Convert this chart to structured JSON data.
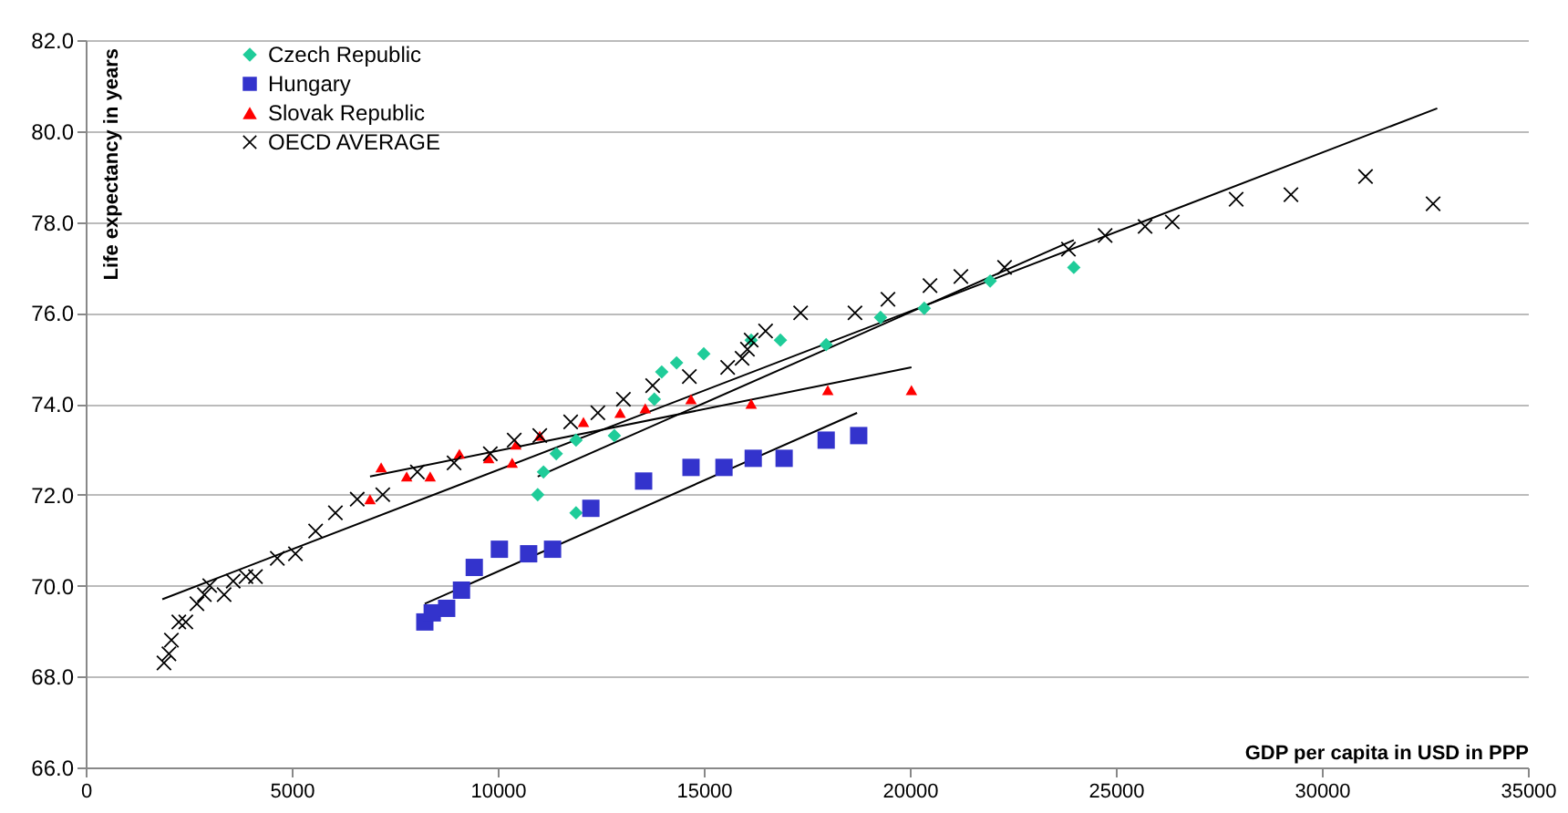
{
  "chart_data": {
    "type": "scatter",
    "xlabel": "GDP per capita in USD in PPP",
    "ylabel": "Life expectancy in years",
    "xlim": [
      0,
      35000
    ],
    "xticks": [
      0,
      5000,
      10000,
      15000,
      20000,
      25000,
      30000,
      35000
    ],
    "ylim": [
      66,
      82
    ],
    "yticks": [
      {
        "value": 66,
        "label": "66.0"
      },
      {
        "value": 68,
        "label": "68.0"
      },
      {
        "value": 70,
        "label": "70.0"
      },
      {
        "value": 72,
        "label": "72.0"
      },
      {
        "value": 74,
        "label": "74.0"
      },
      {
        "value": 76,
        "label": "76.0"
      },
      {
        "value": 78,
        "label": "78.0"
      },
      {
        "value": 80,
        "label": "80.0"
      },
      {
        "value": 82,
        "label": "82.0"
      }
    ],
    "grid": "y",
    "legend": "top left",
    "series": [
      {
        "name": "Czech Republic",
        "marker": "diamond",
        "color": "#1fcc99",
        "x": [
          10970,
          11110,
          11420,
          11900,
          11900,
          12830,
          13800,
          13980,
          14340,
          15000,
          16150,
          16860,
          17970,
          19290,
          20350,
          21950,
          23980
        ],
        "values": [
          72.0,
          72.5,
          72.9,
          73.2,
          71.6,
          73.3,
          74.1,
          74.7,
          74.9,
          75.1,
          75.4,
          75.4,
          75.3,
          75.9,
          76.1,
          76.7,
          77.0
        ]
      },
      {
        "name": "Hungary",
        "marker": "square",
        "color": "#3333cc",
        "x": [
          8230,
          8410,
          8760,
          9120,
          9430,
          10040,
          10750,
          11330,
          12260,
          13540,
          14690,
          15490,
          16200,
          16950,
          17970,
          18760
        ],
        "values": [
          69.2,
          69.4,
          69.5,
          69.9,
          70.4,
          70.8,
          70.7,
          70.8,
          71.7,
          72.3,
          72.6,
          72.6,
          72.8,
          72.8,
          73.2,
          73.3
        ]
      },
      {
        "name": "Slovak Republic",
        "marker": "triangle",
        "color": "#ff0000",
        "x": [
          6900,
          7170,
          7790,
          8360,
          9070,
          9780,
          10350,
          10440,
          11020,
          12080,
          12970,
          13580,
          14690,
          16150,
          18010,
          20040
        ],
        "values": [
          71.9,
          72.6,
          72.4,
          72.4,
          72.9,
          72.8,
          72.7,
          73.1,
          73.3,
          73.6,
          73.8,
          73.9,
          74.1,
          74.0,
          74.3,
          74.3
        ]
      },
      {
        "name": "OECD AVERAGE",
        "marker": "cross",
        "color": "#000000",
        "x": [
          1900,
          2020,
          2080,
          2260,
          2430,
          2700,
          2880,
          3010,
          3360,
          3580,
          3890,
          4120,
          4650,
          5090,
          5580,
          6060,
          6590,
          7210,
          8050,
          8940,
          9820,
          10400,
          11020,
          11770,
          12430,
          13050,
          13760,
          14650,
          15580,
          15930,
          16060,
          16150,
          16500,
          17350,
          18670,
          19470,
          20490,
          21240,
          22300,
          23850,
          24740,
          25710,
          26370,
          27920,
          29250,
          31060,
          32700
        ],
        "values": [
          68.3,
          68.5,
          68.8,
          69.2,
          69.2,
          69.6,
          69.8,
          70.0,
          69.8,
          70.1,
          70.2,
          70.2,
          70.6,
          70.7,
          71.2,
          71.6,
          71.9,
          72.0,
          72.5,
          72.7,
          72.9,
          73.2,
          73.3,
          73.6,
          73.8,
          74.1,
          74.4,
          74.6,
          74.8,
          75.0,
          75.2,
          75.4,
          75.6,
          76.0,
          76.0,
          76.3,
          76.6,
          76.8,
          77.0,
          77.4,
          77.7,
          77.9,
          78.0,
          78.5,
          78.6,
          79.0,
          78.4
        ]
      },
      {
        "type": "line",
        "color": "#000000",
        "x": [
          10970,
          23980
        ],
        "values": [
          72.4,
          77.6
        ]
      },
      {
        "type": "line",
        "color": "#000000",
        "x": [
          8230,
          18720
        ],
        "values": [
          69.6,
          73.8
        ]
      },
      {
        "type": "line",
        "color": "#000000",
        "x": [
          6900,
          20040
        ],
        "values": [
          72.4,
          74.8
        ]
      },
      {
        "type": "line",
        "color": "#000000",
        "x": [
          1860,
          32800
        ],
        "values": [
          69.7,
          80.5
        ]
      }
    ]
  }
}
